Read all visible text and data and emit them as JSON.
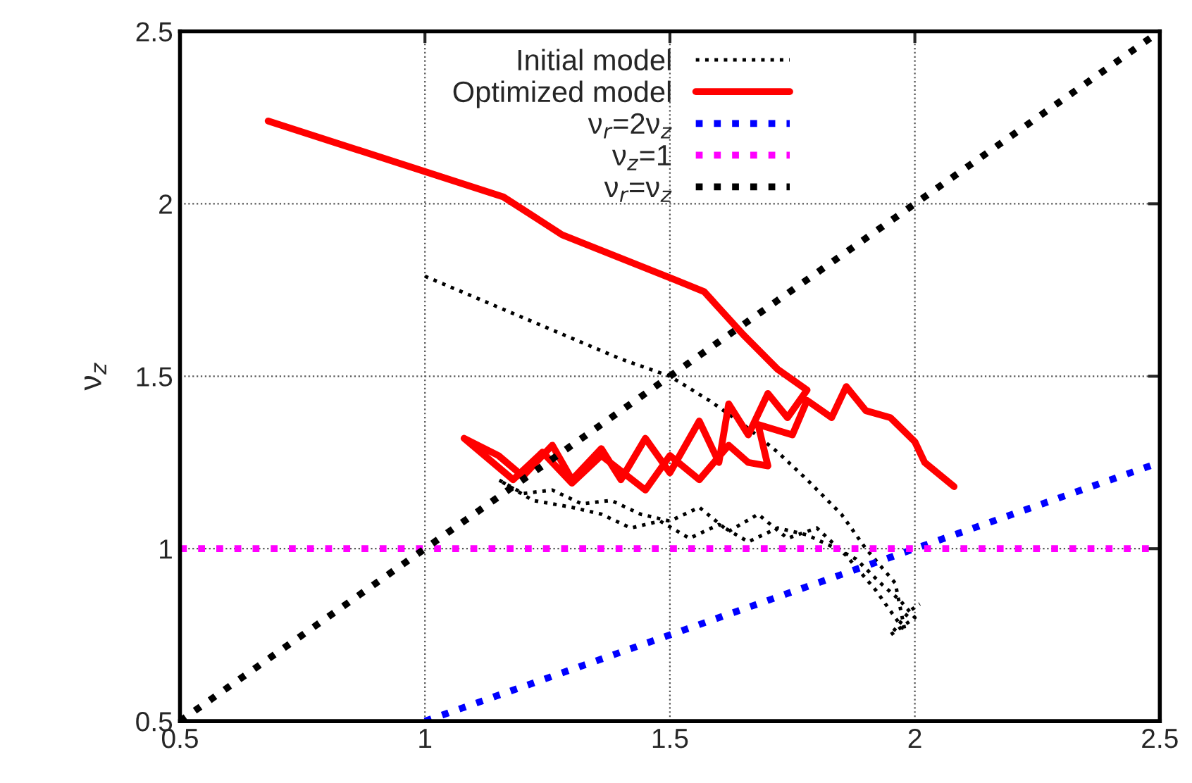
{
  "chart_data": {
    "type": "line",
    "ylabel": "ν$_{z}$",
    "xlim": [
      0.5,
      2.5
    ],
    "ylim": [
      0.5,
      2.5
    ],
    "xticks": [
      0.5,
      1,
      1.5,
      2,
      2.5
    ],
    "yticks": [
      0.5,
      1,
      1.5,
      2,
      2.5
    ],
    "grid": true,
    "legend": "top",
    "series": [
      {
        "name": "Initial model",
        "color": "#000000",
        "line_style": "dotted",
        "x": [
          1.0,
          1.2,
          1.4,
          1.5,
          1.58,
          1.65,
          1.72,
          1.78,
          1.85,
          1.9,
          1.96,
          1.98,
          1.92,
          1.86,
          1.8,
          1.74,
          1.68,
          1.62,
          1.56,
          1.5,
          1.44,
          1.38,
          1.32,
          1.26,
          1.2,
          1.15,
          1.22,
          1.3,
          1.36,
          1.42,
          1.48,
          1.54,
          1.6,
          1.66,
          1.72,
          1.78,
          1.84,
          1.88,
          1.93,
          1.97,
          2.0,
          1.95,
          1.99,
          2.01
        ],
        "values": [
          1.79,
          1.67,
          1.55,
          1.5,
          1.43,
          1.36,
          1.28,
          1.2,
          1.1,
          1.0,
          0.9,
          0.76,
          0.88,
          0.98,
          1.06,
          1.03,
          1.1,
          1.05,
          1.12,
          1.08,
          1.1,
          1.14,
          1.13,
          1.17,
          1.16,
          1.2,
          1.14,
          1.12,
          1.1,
          1.06,
          1.08,
          1.03,
          1.07,
          1.02,
          1.06,
          1.04,
          1.0,
          0.97,
          0.9,
          0.85,
          0.8,
          0.75,
          0.82,
          0.84
        ]
      },
      {
        "name": "Optimized model",
        "color": "#ff0000",
        "line_style": "solid",
        "x": [
          0.68,
          1.16,
          1.28,
          1.51,
          1.57,
          1.65,
          1.72,
          1.78,
          1.74,
          1.7,
          1.66,
          1.62,
          1.6,
          1.56,
          1.5,
          1.45,
          1.4,
          1.36,
          1.3,
          1.26,
          1.2,
          1.15,
          1.08,
          1.18,
          1.24,
          1.3,
          1.36,
          1.45,
          1.5,
          1.56,
          1.62,
          1.66,
          1.7,
          1.68,
          1.75,
          1.78,
          1.83,
          1.86,
          1.9,
          1.95,
          2.0,
          2.02,
          2.08
        ],
        "values": [
          2.24,
          2.02,
          1.91,
          1.78,
          1.745,
          1.62,
          1.52,
          1.46,
          1.38,
          1.45,
          1.33,
          1.42,
          1.25,
          1.37,
          1.22,
          1.32,
          1.2,
          1.29,
          1.2,
          1.3,
          1.21,
          1.27,
          1.32,
          1.2,
          1.28,
          1.19,
          1.27,
          1.17,
          1.27,
          1.2,
          1.3,
          1.25,
          1.24,
          1.36,
          1.33,
          1.43,
          1.38,
          1.47,
          1.4,
          1.38,
          1.31,
          1.25,
          1.18
        ]
      },
      {
        "name": "ν$_{r}$=2ν$_{z}$",
        "color": "#0000ff",
        "line_style": "dotted",
        "x": [
          1.0,
          2.5
        ],
        "values": [
          0.5,
          1.25
        ]
      },
      {
        "name": "ν$_{z}$=1",
        "color": "#ff00ff",
        "line_style": "dotted",
        "x": [
          0.5,
          2.5
        ],
        "values": [
          1,
          1
        ]
      },
      {
        "name": "ν$_{r}$=ν$_{z}$",
        "color": "#000000",
        "line_style": "dotted",
        "x": [
          0.5,
          2.5
        ],
        "values": [
          0.5,
          2.5
        ]
      }
    ]
  }
}
